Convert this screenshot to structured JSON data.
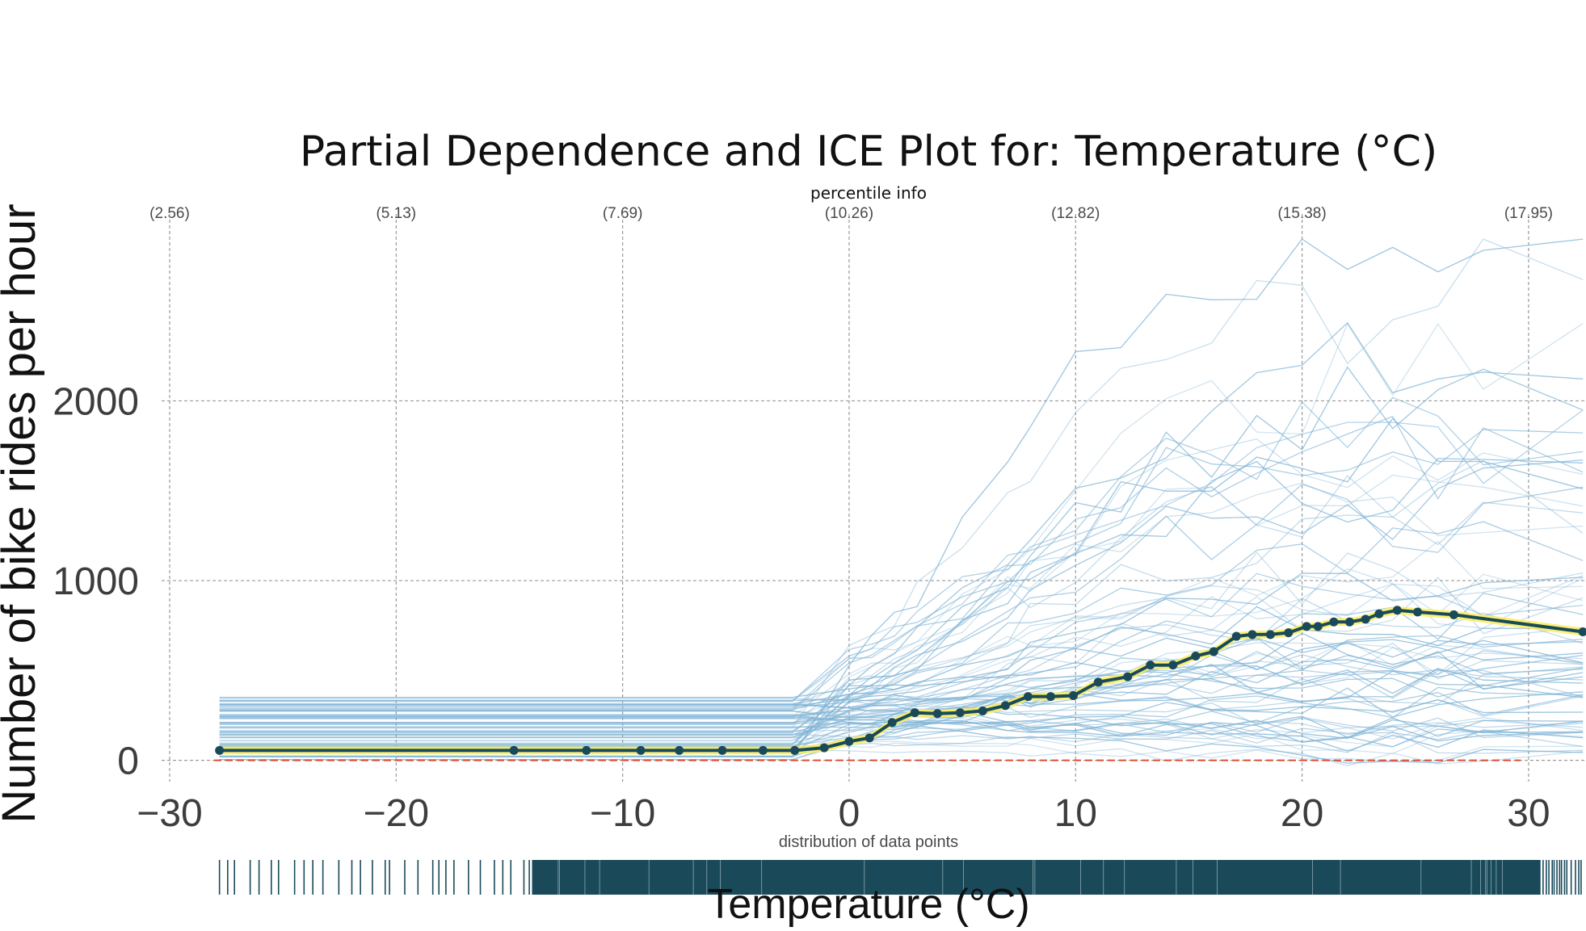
{
  "chart_data": {
    "type": "line",
    "title": "Partial Dependence and ICE Plot for: Temperature (°C)",
    "xlabel": "Temperature (°C)",
    "ylabel": "Number of bike rides per hour",
    "xlim": [
      -30,
      32.5
    ],
    "ylim": [
      -60,
      2950
    ],
    "x_ticks": [
      -30,
      -20,
      -10,
      0,
      10,
      20,
      30
    ],
    "x_tick_labels": [
      "−30",
      "−20",
      "−10",
      "0",
      "10",
      "20",
      "30"
    ],
    "y_ticks": [
      0,
      1000,
      2000
    ],
    "y_tick_labels": [
      "0",
      "1000",
      "2000"
    ],
    "grid": true,
    "percentile_axis": {
      "title": "percentile info",
      "labels": [
        "(2.56)",
        "(5.13)",
        "(7.69)",
        "(10.26)",
        "(12.82)",
        "(15.38)",
        "(17.95)"
      ],
      "positions": [
        -30,
        -20,
        -10,
        0,
        10,
        20,
        30
      ]
    },
    "distribution_panel": {
      "title": "distribution of data points"
    },
    "baseline": 0,
    "series": [
      {
        "style": "pdp",
        "x": [
          -27.8,
          -14.8,
          -11.6,
          -9.2,
          -7.5,
          -5.6,
          -3.8,
          -2.4,
          -1.1,
          0,
          0.9,
          1.9,
          2.9,
          3.9,
          4.9,
          5.9,
          6.9,
          7.9,
          8.9,
          9.9,
          11.0,
          12.3,
          13.3,
          14.3,
          15.3,
          16.1,
          17.1,
          17.8,
          18.6,
          19.4,
          20.2,
          20.7,
          21.4,
          22.1,
          22.8,
          23.4,
          24.2,
          25.1,
          26.7,
          32.4
        ],
        "values": [
          55,
          55,
          55,
          55,
          55,
          55,
          55,
          55,
          70,
          105,
          125,
          210,
          265,
          260,
          265,
          275,
          305,
          355,
          355,
          360,
          435,
          465,
          530,
          530,
          580,
          605,
          690,
          700,
          700,
          710,
          745,
          745,
          770,
          770,
          785,
          815,
          835,
          825,
          810,
          715
        ]
      },
      {
        "style": "ice",
        "note": "individual conditional expectation curves; each rises from a flat level below about 0 °C toward higher ride counts at warmer temperatures",
        "x": [
          -27.8,
          -2.5,
          0,
          1,
          2,
          3,
          5,
          7,
          8,
          10,
          12,
          14,
          16,
          18,
          20,
          22,
          24,
          26,
          28,
          32.4
        ],
        "curves_start": [
          20,
          40,
          60,
          80,
          100,
          120,
          140,
          160,
          180,
          200,
          220,
          240,
          260,
          280,
          300,
          320,
          340
        ],
        "curves_end": [
          30,
          120,
          250,
          380,
          480,
          560,
          640,
          720,
          820,
          950,
          1080,
          1180,
          1300,
          1450,
          1600,
          2500,
          2650
        ]
      }
    ],
    "colors": {
      "pdp_line": "#1a4a5a",
      "pdp_band": "#fcef5e",
      "pdp_marker": "#1a4a5a",
      "ice_line": "#7fb3d5",
      "baseline": "#e24a33",
      "grid": "#9a9a9a",
      "rug": "#1a4a5a"
    }
  }
}
